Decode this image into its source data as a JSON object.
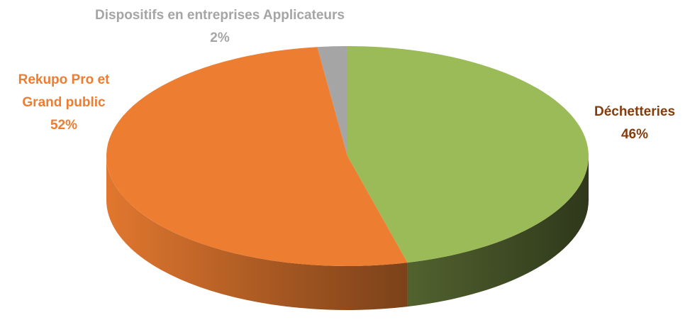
{
  "chart_data": {
    "type": "pie",
    "categories": [
      "Déchetteries",
      "Rekupo Pro et Grand public",
      "Dispositifs en entreprises Applicateurs"
    ],
    "values": [
      46,
      52,
      2
    ],
    "value_labels": [
      "46%",
      "52%",
      "2%"
    ],
    "colors": [
      "#9bbb59",
      "#ed7d31",
      "#a5a5a5"
    ],
    "label_colors": [
      "#843c0c",
      "#ed7d31",
      "#a5a5a5"
    ]
  }
}
